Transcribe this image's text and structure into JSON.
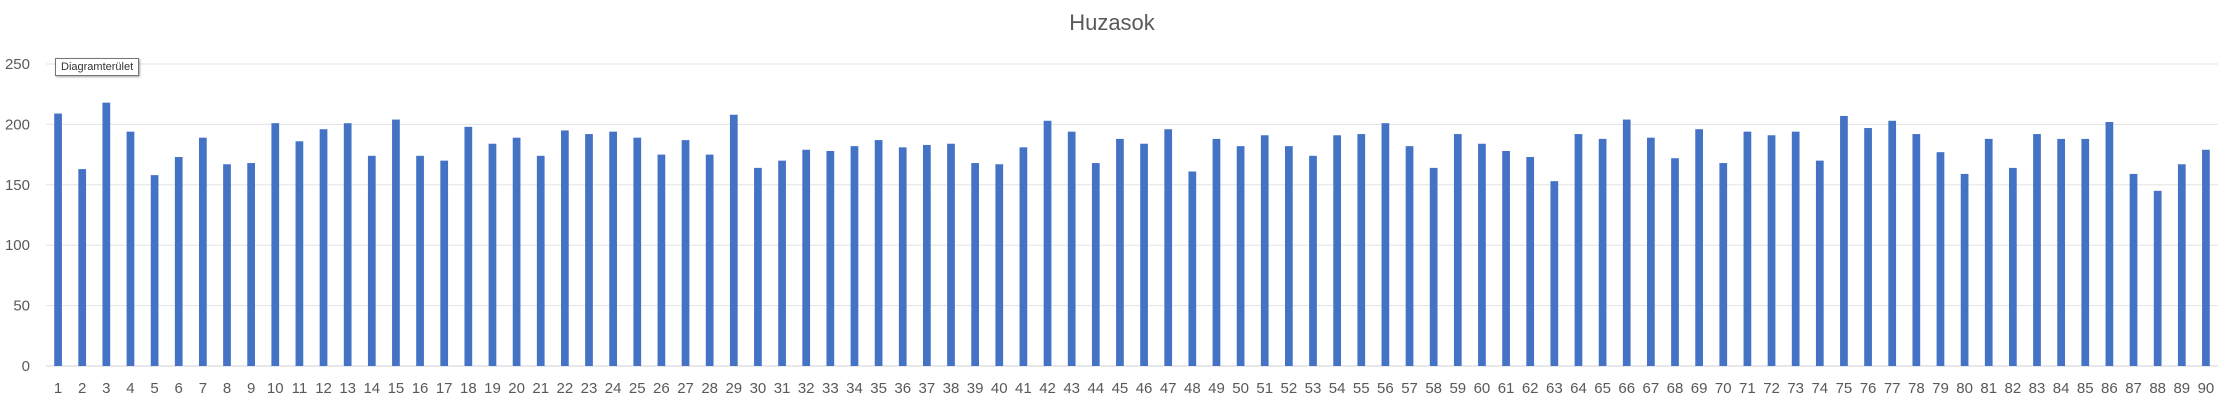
{
  "chart_data": {
    "type": "bar",
    "title": "Huzasok",
    "xlabel": "",
    "ylabel": "",
    "ylim": [
      0,
      250
    ],
    "yticks": [
      0,
      50,
      100,
      150,
      200,
      250
    ],
    "grid": true,
    "legend": "none",
    "bar_color": "#4472c4",
    "categories": [
      "1",
      "2",
      "3",
      "4",
      "5",
      "6",
      "7",
      "8",
      "9",
      "10",
      "11",
      "12",
      "13",
      "14",
      "15",
      "16",
      "17",
      "18",
      "19",
      "20",
      "21",
      "22",
      "23",
      "24",
      "25",
      "26",
      "27",
      "28",
      "29",
      "30",
      "31",
      "32",
      "33",
      "34",
      "35",
      "36",
      "37",
      "38",
      "39",
      "40",
      "41",
      "42",
      "43",
      "44",
      "45",
      "46",
      "47",
      "48",
      "49",
      "50",
      "51",
      "52",
      "53",
      "54",
      "55",
      "56",
      "57",
      "58",
      "59",
      "60",
      "61",
      "62",
      "63",
      "64",
      "65",
      "66",
      "67",
      "68",
      "69",
      "70",
      "71",
      "72",
      "73",
      "74",
      "75",
      "76",
      "77",
      "78",
      "79",
      "80",
      "81",
      "82",
      "83",
      "84",
      "85",
      "86",
      "87",
      "88",
      "89",
      "90"
    ],
    "values": [
      209,
      163,
      218,
      194,
      158,
      173,
      189,
      167,
      168,
      201,
      186,
      196,
      201,
      174,
      204,
      174,
      170,
      198,
      184,
      189,
      174,
      195,
      192,
      194,
      189,
      175,
      187,
      175,
      208,
      164,
      170,
      179,
      178,
      182,
      187,
      181,
      183,
      184,
      168,
      167,
      181,
      203,
      194,
      168,
      188,
      184,
      196,
      161,
      188,
      182,
      191,
      182,
      174,
      191,
      192,
      201,
      182,
      164,
      192,
      184,
      178,
      173,
      153,
      192,
      188,
      204,
      189,
      172,
      196,
      168,
      194,
      191,
      194,
      170,
      207,
      197,
      203,
      192,
      177,
      159,
      188,
      164,
      192,
      188,
      188,
      202,
      159,
      145,
      167,
      179
    ]
  },
  "overlay": {
    "tooltip_text": "Diagramterület"
  }
}
